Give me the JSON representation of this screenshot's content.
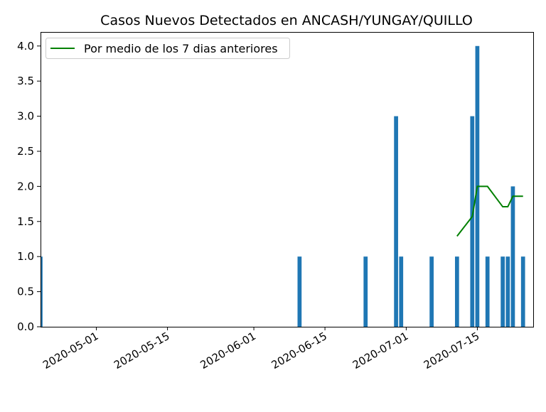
{
  "chart_data": {
    "type": "bar",
    "title": "Casos Nuevos Detectados en ANCASH/YUNGAY/QUILLO",
    "xlabel": "",
    "ylabel": "",
    "xlim": [
      "2020-04-20",
      "2020-07-26"
    ],
    "ylim": [
      0,
      4.2
    ],
    "grid": false,
    "legend_position": "top-left",
    "x_tick_labels": [
      "2020-05-01",
      "2020-05-15",
      "2020-06-01",
      "2020-06-15",
      "2020-07-01",
      "2020-07-15"
    ],
    "y_tick_labels": [
      "0.0",
      "0.5",
      "1.0",
      "1.5",
      "2.0",
      "2.5",
      "3.0",
      "3.5",
      "4.0"
    ],
    "bar_series": {
      "color": "#1f77b4",
      "points": [
        {
          "x": "2020-04-20",
          "y": 1
        },
        {
          "x": "2020-06-10",
          "y": 1
        },
        {
          "x": "2020-06-23",
          "y": 1
        },
        {
          "x": "2020-06-29",
          "y": 3
        },
        {
          "x": "2020-06-30",
          "y": 1
        },
        {
          "x": "2020-07-06",
          "y": 1
        },
        {
          "x": "2020-07-11",
          "y": 1
        },
        {
          "x": "2020-07-14",
          "y": 3
        },
        {
          "x": "2020-07-15",
          "y": 4
        },
        {
          "x": "2020-07-17",
          "y": 1
        },
        {
          "x": "2020-07-20",
          "y": 1
        },
        {
          "x": "2020-07-21",
          "y": 1
        },
        {
          "x": "2020-07-22",
          "y": 2
        },
        {
          "x": "2020-07-24",
          "y": 1
        }
      ]
    },
    "line_series": {
      "name": "Por medio de los 7 dias anteriores",
      "color": "#008000",
      "points": [
        {
          "x": "2020-07-11",
          "y": 1.29
        },
        {
          "x": "2020-07-14",
          "y": 1.57
        },
        {
          "x": "2020-07-15",
          "y": 2.0
        },
        {
          "x": "2020-07-17",
          "y": 2.0
        },
        {
          "x": "2020-07-20",
          "y": 1.71
        },
        {
          "x": "2020-07-21",
          "y": 1.71
        },
        {
          "x": "2020-07-22",
          "y": 1.86
        },
        {
          "x": "2020-07-24",
          "y": 1.86
        }
      ]
    }
  }
}
